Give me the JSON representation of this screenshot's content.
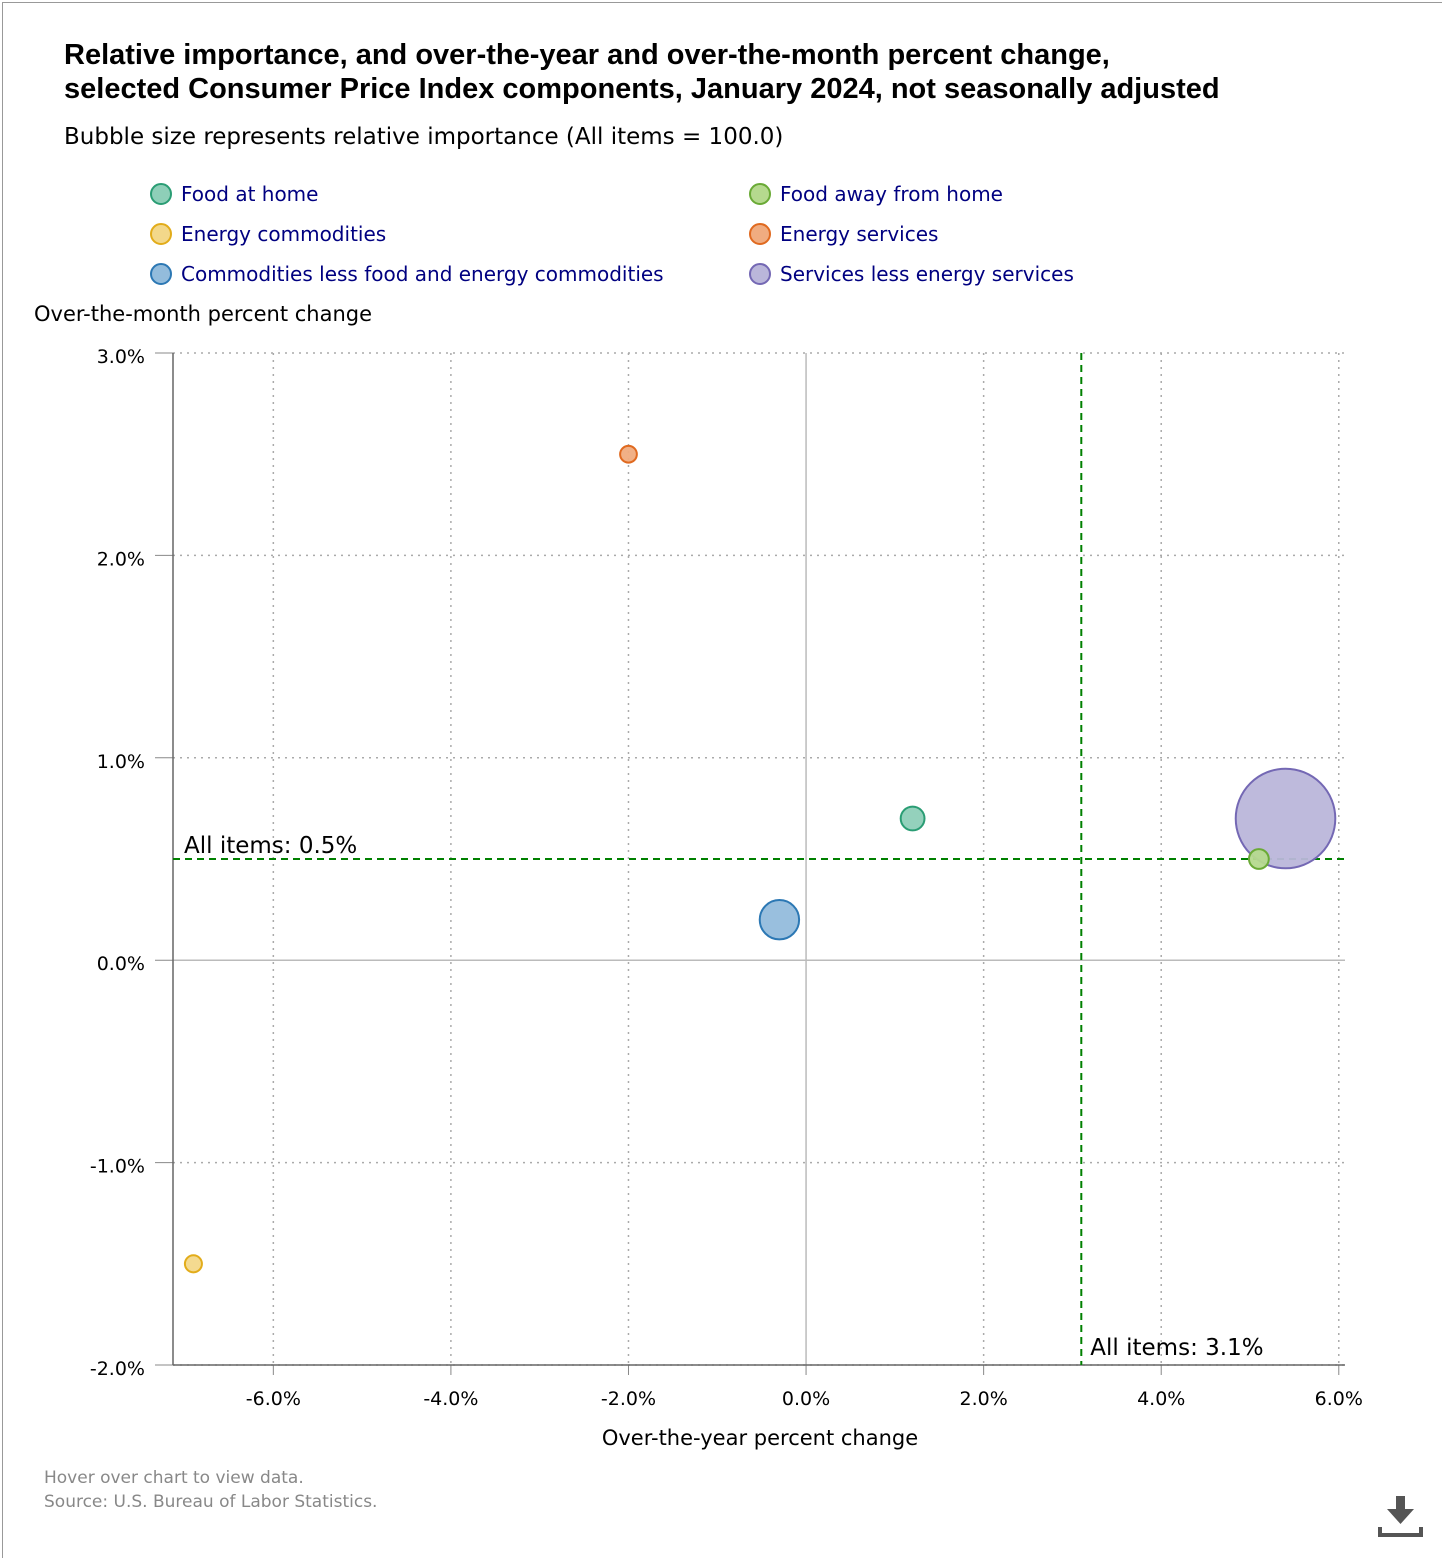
{
  "title": "Relative importance, and over-the-year and over-the-month percent change,\nselected Consumer Price Index components, January 2024, not seasonally adjusted",
  "subtitle": "Bubble size represents relative importance (All items = 100.0)",
  "footer": {
    "hint": "Hover over chart to view data.",
    "source": "Source: U.S. Bureau of Labor Statistics."
  },
  "download_icon": "download-icon",
  "chart_data": {
    "type": "scatter",
    "subtype": "bubble",
    "xlabel": "Over-the-year percent change",
    "ylabel": "Over-the-month percent change",
    "xlim": [
      -7.13,
      6.07
    ],
    "ylim": [
      -2.0,
      3.0
    ],
    "xticks": [
      -6,
      -4,
      -2,
      0,
      2,
      4,
      6
    ],
    "xtick_labels": [
      "-6.0%",
      "-4.0%",
      "-2.0%",
      "0.0%",
      "2.0%",
      "4.0%",
      "6.0%"
    ],
    "yticks": [
      3,
      2,
      1,
      0,
      -1,
      -2
    ],
    "ytick_labels": [
      "3.0%",
      "2.0%",
      "1.0%",
      "0.0%",
      "-1.0%",
      "-2.0%"
    ],
    "grid": true,
    "legend_position": "top",
    "reference_lines": [
      {
        "axis": "y",
        "value": 0.5,
        "label": "All items: 0.5%",
        "color": "#008000"
      },
      {
        "axis": "x",
        "value": 3.1,
        "label": "All items: 3.1%",
        "color": "#008000"
      }
    ],
    "series": [
      {
        "name": "Food at home",
        "x": 1.2,
        "y": 0.7,
        "size": 8.2,
        "fill": "#8ecfb8",
        "stroke": "#2a9d74"
      },
      {
        "name": "Food away from home",
        "x": 5.1,
        "y": 0.5,
        "size": 5.4,
        "fill": "#b5d98e",
        "stroke": "#6aaa36"
      },
      {
        "name": "Energy commodities",
        "x": -6.9,
        "y": -1.5,
        "size": 3.5,
        "fill": "#f3d88a",
        "stroke": "#e2ac1a"
      },
      {
        "name": "Energy services",
        "x": -2.0,
        "y": 2.5,
        "size": 3.3,
        "fill": "#f0ac80",
        "stroke": "#e06a20"
      },
      {
        "name": "Commodities less food and energy commodities",
        "x": -0.3,
        "y": 0.2,
        "size": 19.0,
        "fill": "#93bcdc",
        "stroke": "#2c78b4"
      },
      {
        "name": "Services less energy services",
        "x": 5.4,
        "y": 0.7,
        "size": 60.8,
        "fill": "#bab6da",
        "stroke": "#7468b4"
      }
    ]
  }
}
